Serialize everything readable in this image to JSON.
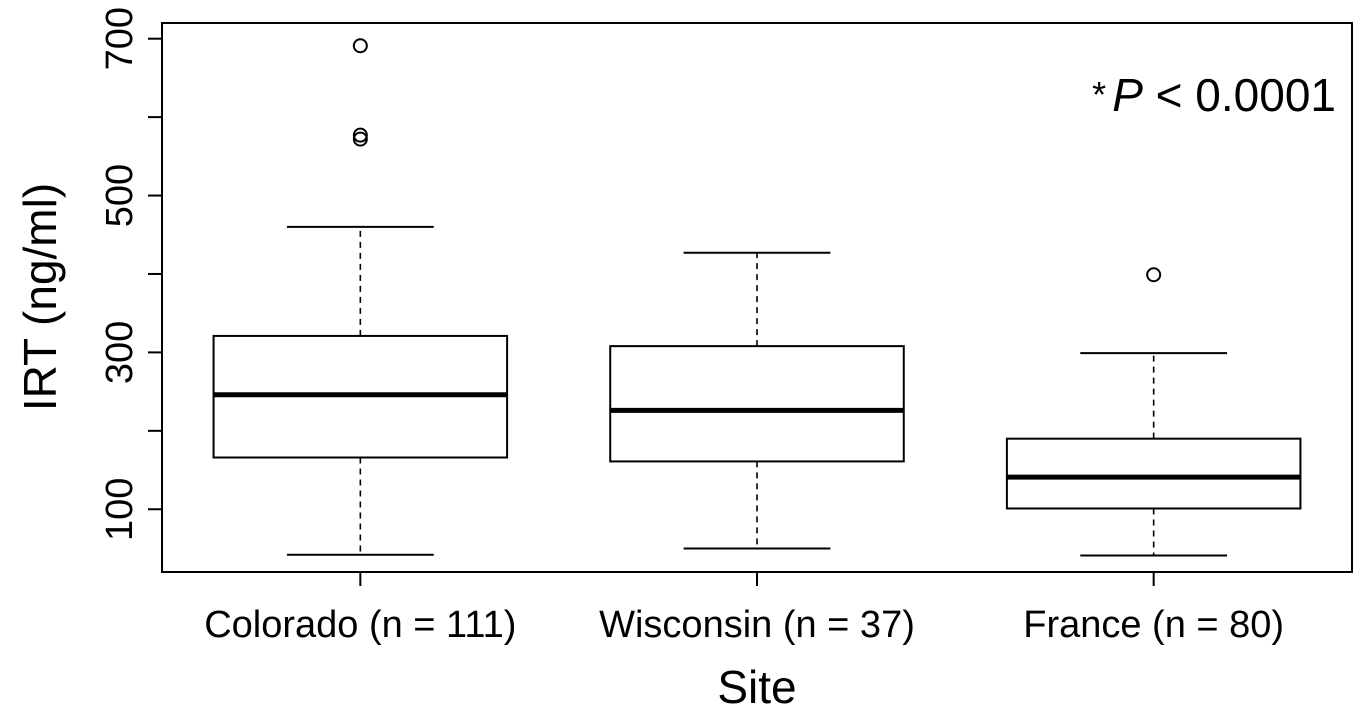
{
  "chart_data": {
    "type": "boxplot",
    "xlabel": "Site",
    "ylabel": "IRT (ng/ml)",
    "ylim": [
      20,
      720
    ],
    "yticks": [
      100,
      300,
      500,
      700
    ],
    "yticks_minor": [
      200,
      400,
      600
    ],
    "categories": [
      "Colorado (n = 111)",
      "Wisconsin (n = 37)",
      "France (n = 80)"
    ],
    "boxes": [
      {
        "whisker_low": 42,
        "q1": 166,
        "median": 246,
        "q3": 321,
        "whisker_high": 460,
        "outliers": [
          691,
          577,
          572
        ]
      },
      {
        "whisker_low": 50,
        "q1": 161,
        "median": 226,
        "q3": 308,
        "whisker_high": 427,
        "outliers": []
      },
      {
        "whisker_low": 41,
        "q1": 101,
        "median": 141,
        "q3": 190,
        "whisker_high": 299,
        "outliers": [
          399
        ]
      }
    ],
    "annotation": {
      "star": "*",
      "p_symbol": "P",
      "text": " < 0.0001"
    }
  }
}
